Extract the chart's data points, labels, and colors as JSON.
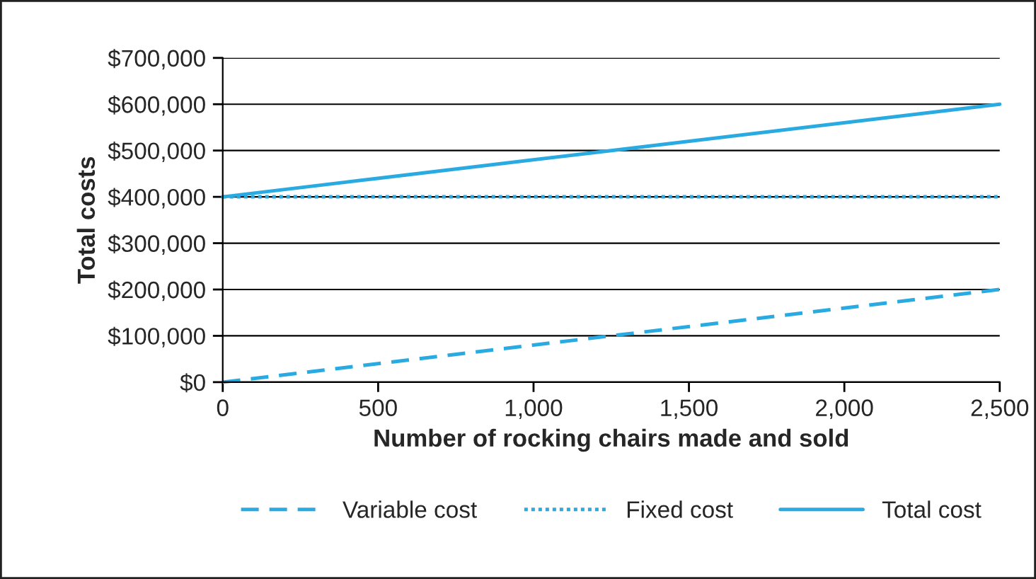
{
  "chart_data": {
    "type": "line",
    "xlabel": "Number of rocking chairs made and sold",
    "ylabel": "Total costs",
    "xlim": [
      0,
      2500
    ],
    "ylim": [
      0,
      700000
    ],
    "xticks": [
      0,
      500,
      {
        "value": 1000,
        "label": "1,000"
      },
      {
        "value": 1500,
        "label": "1,500"
      },
      {
        "value": 2000,
        "label": "2,000"
      },
      {
        "value": 2500,
        "label": "2,500"
      }
    ],
    "yticks": [
      {
        "value": 0,
        "label": "$0"
      },
      {
        "value": 100000,
        "label": "$100,000"
      },
      {
        "value": 200000,
        "label": "$200,000"
      },
      {
        "value": 300000,
        "label": "$300,000"
      },
      {
        "value": 400000,
        "label": "$400,000"
      },
      {
        "value": 500000,
        "label": "$500,000"
      },
      {
        "value": 600000,
        "label": "$600,000"
      },
      {
        "value": 700000,
        "label": "$700,000"
      }
    ],
    "x": [
      0,
      1250,
      2500
    ],
    "grid": "y",
    "legend": "bottom",
    "marker": "none",
    "series": [
      {
        "name": "Variable cost",
        "color": "#29abe2",
        "line_style": "dashed",
        "values": [
          0,
          100000,
          200000
        ]
      },
      {
        "name": "Fixed cost",
        "color": "#29abe2",
        "line_style": "dotted",
        "values": [
          400000,
          400000,
          400000
        ]
      },
      {
        "name": "Total cost",
        "color": "#29abe2",
        "line_style": "solid",
        "values": [
          400000,
          500000,
          600000
        ]
      }
    ]
  }
}
